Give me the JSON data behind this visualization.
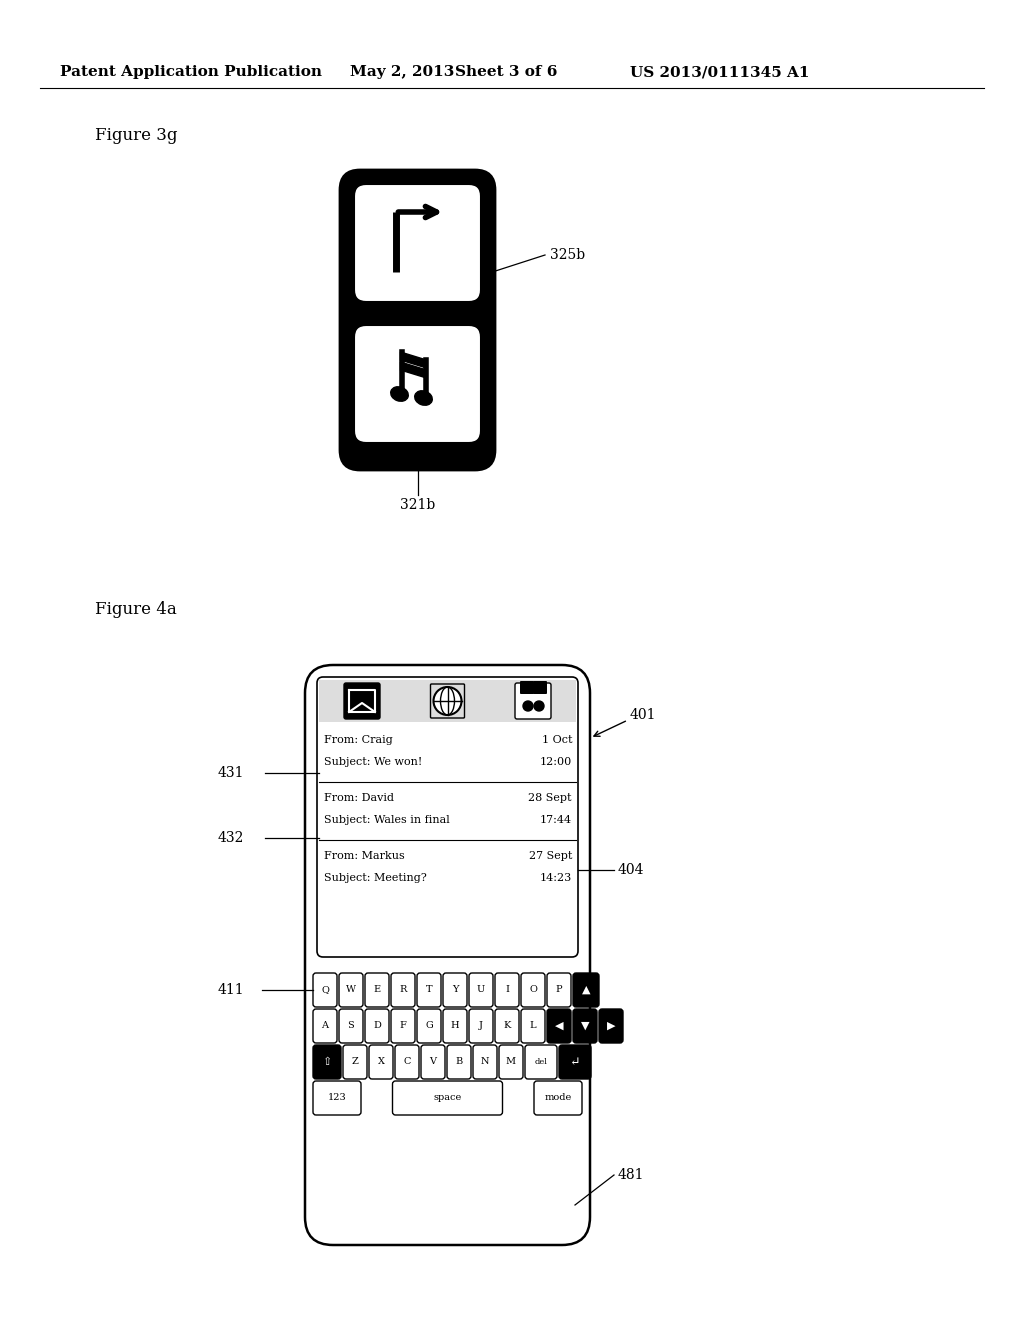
{
  "bg_color": "#ffffff",
  "header_text": "Patent Application Publication",
  "header_date": "May 2, 2013",
  "header_sheet": "Sheet 3 of 6",
  "header_patent": "US 2013/0111345 A1",
  "fig3g_label": "Figure 3g",
  "fig4a_label": "Figure 4a",
  "label_325b": "325b",
  "label_321b": "321b",
  "label_401": "401",
  "label_431": "431",
  "label_432": "432",
  "label_404": "404",
  "label_411": "411",
  "label_481": "481",
  "email_row1_from": "From: Craig",
  "email_row1_date": "1 Oct",
  "email_row1_subj": "Subject: We won!",
  "email_row1_time": "12:00",
  "email_row2_from": "From: David",
  "email_row2_date": "28 Sept",
  "email_row2_subj": "Subject: Wales in final",
  "email_row2_time": "17:44",
  "email_row3_from": "From: Markus",
  "email_row3_date": "27 Sept",
  "email_row3_subj": "Subject: Meeting?",
  "email_row3_time": "14:23"
}
